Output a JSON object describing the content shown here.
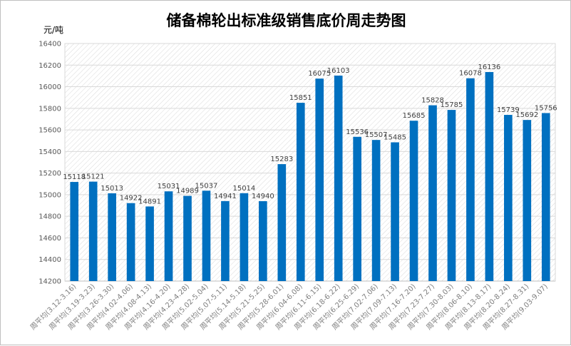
{
  "chart_data": {
    "type": "bar",
    "title": "储备棉轮出标准级销售底价周走势图",
    "ylabel": "元/吨",
    "xlabel": "",
    "ylim": [
      14200,
      16400
    ],
    "ytick_step": 200,
    "grid": true,
    "legend": "none",
    "bar_color": "#0070c0",
    "categories": [
      "周平均(3.12-3.16)",
      "周平均(3.19-3.23)",
      "周平均(3.26-3.30)",
      "周平均(4.02-4.06)",
      "周平均(4.08-4.13)",
      "周平均(4.16-4.20)",
      "周平均(4.23-4.28)",
      "周平均(5.02-5.04)",
      "周平均(5.07-5.11)",
      "周平均(5.14-5.18)",
      "周平均(5.21-5.25)",
      "周平均(5.28-6.01)",
      "周平均(6.04-6.08)",
      "周平均(6.11-6.15)",
      "周平均(6.18-6.22)",
      "周平均(6.25-6.29)",
      "周平均(7.02-7.06)",
      "周平均(7.09-7.13)",
      "周平均(7.16-7.20)",
      "周平均(7.23-7.27)",
      "周平均(7.30-8.03)",
      "周平均(8.06-8.10)",
      "周平均(8.13-8.17)",
      "周平均(8.20-8.24)",
      "周平均(8.27-8.31)",
      "周平均(9.03-9.07)"
    ],
    "values": [
      15118,
      15121,
      15013,
      14922,
      14891,
      15031,
      14989,
      15037,
      14941,
      15014,
      14940,
      15283,
      15851,
      16075,
      16103,
      15536,
      15507,
      15485,
      15685,
      15828,
      15785,
      16078,
      16136,
      15739,
      15692,
      15756
    ]
  }
}
